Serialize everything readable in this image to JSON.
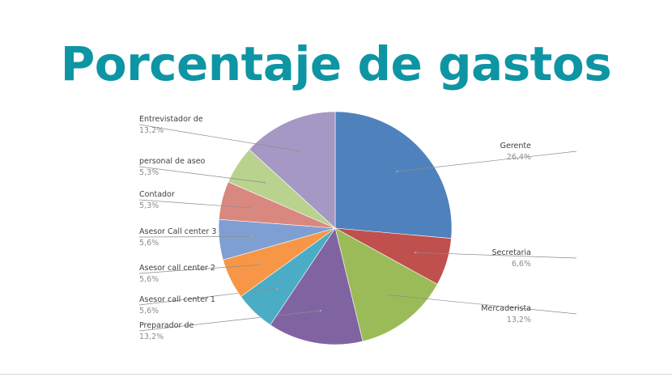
{
  "slide": {
    "title": "Porcentaje de gastos"
  },
  "chart_data": {
    "type": "pie",
    "title": "",
    "categories": [
      "Gerente",
      "Secretaria",
      "Mercaderista",
      "Preparador de",
      "Asesor call center 1",
      "Asesor call center 2",
      "Asesor Call center 3",
      "Contador",
      "personal de aseo",
      "Entrevistador de"
    ],
    "values": [
      26.4,
      6.6,
      13.2,
      13.2,
      5.6,
      5.6,
      5.6,
      5.3,
      5.3,
      13.2
    ],
    "value_labels": [
      "26,4%",
      "6,6%",
      "13,2%",
      "13,2%",
      "5,6%",
      "5,6%",
      "5,6%",
      "5,3%",
      "5,3%",
      "13,2%"
    ],
    "colors": [
      "#4f81bd",
      "#c0504d",
      "#9bbb59",
      "#8064a2",
      "#4bacc6",
      "#f79646",
      "#7f9fd3",
      "#d98880",
      "#b9d28d",
      "#a698c4"
    ],
    "start_angle": "12 o'clock",
    "direction": "clockwise",
    "legend": "none",
    "data_labels": "outside with leader lines"
  }
}
